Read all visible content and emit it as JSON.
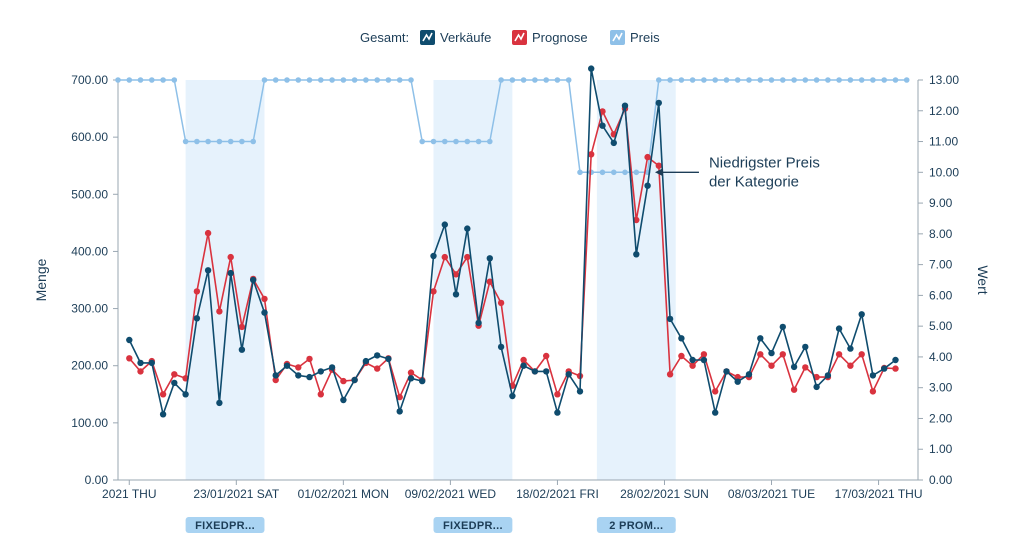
{
  "chart_data": {
    "type": "line",
    "legend": {
      "title": "Gesamt:",
      "items": [
        {
          "key": "sales",
          "label": "Verkäufe",
          "color": "#0f4c6e"
        },
        {
          "key": "forecast",
          "label": "Prognose",
          "color": "#d9333f"
        },
        {
          "key": "price",
          "label": "Preis",
          "color": "#8ec0e8"
        }
      ]
    },
    "ylabel_left": "Menge",
    "ylabel_right": "Wert",
    "ylim_left": [
      0,
      700
    ],
    "ylim_right": [
      0,
      13
    ],
    "yticks_left": [
      "0.00",
      "100.00",
      "200.00",
      "300.00",
      "400.00",
      "500.00",
      "600.00",
      "700.00"
    ],
    "yticks_right": [
      "0.00",
      "1.00",
      "2.00",
      "3.00",
      "4.00",
      "5.00",
      "6.00",
      "7.00",
      "8.00",
      "9.00",
      "10.00",
      "11.00",
      "12.00",
      "13.00"
    ],
    "x_range": [
      0,
      71
    ],
    "xticks": [
      {
        "label": "2021 THU",
        "x": 1
      },
      {
        "label": "23/01/2021 SAT",
        "x": 10.5
      },
      {
        "label": "01/02/2021 MON",
        "x": 20
      },
      {
        "label": "09/02/2021 WED",
        "x": 29.5
      },
      {
        "label": "18/02/2021 FRI",
        "x": 39
      },
      {
        "label": "28/02/2021 SUN",
        "x": 48.5
      },
      {
        "label": "08/03/2021 TUE",
        "x": 58
      },
      {
        "label": "17/03/2021 THU",
        "x": 67.5
      }
    ],
    "highlight_bands": [
      {
        "start": 6,
        "end": 13,
        "label": "FIXEDPR..."
      },
      {
        "start": 28,
        "end": 35,
        "label": "FIXEDPR..."
      },
      {
        "start": 42.5,
        "end": 49.5,
        "label": "2 PROM..."
      }
    ],
    "series": [
      {
        "name": "Verkäufe",
        "axis": "left",
        "values": [
          245,
          205,
          205,
          115,
          170,
          150,
          283,
          367,
          135,
          362,
          228,
          350,
          293,
          183,
          200,
          183,
          180,
          190,
          197,
          140,
          175,
          208,
          218,
          212,
          120,
          178,
          173,
          392,
          447,
          325,
          440,
          275,
          388,
          233,
          147,
          200,
          190,
          190,
          118,
          185,
          155,
          720,
          620,
          590,
          655,
          395,
          515,
          660,
          282,
          248,
          210,
          210,
          118,
          190,
          172,
          185,
          248,
          222,
          268,
          198,
          233,
          163,
          183,
          265,
          230,
          290,
          183,
          195,
          210
        ]
      },
      {
        "name": "Prognose",
        "axis": "left",
        "values": [
          213,
          190,
          208,
          150,
          185,
          178,
          330,
          432,
          295,
          390,
          268,
          352,
          317,
          175,
          203,
          197,
          212,
          150,
          193,
          173,
          175,
          205,
          195,
          213,
          145,
          188,
          175,
          330,
          390,
          360,
          390,
          270,
          347,
          310,
          165,
          210,
          190,
          217,
          150,
          190,
          182,
          570,
          645,
          605,
          650,
          455,
          565,
          550,
          185,
          217,
          200,
          220,
          155,
          190,
          180,
          180,
          220,
          200,
          220,
          158,
          197,
          180,
          180,
          220,
          200,
          220,
          155,
          196,
          195
        ]
      },
      {
        "name": "Preis",
        "axis": "right",
        "values": [
          13,
          13,
          13,
          13,
          13,
          13,
          11,
          11,
          11,
          11,
          11,
          11,
          11,
          13,
          13,
          13,
          13,
          13,
          13,
          13,
          13,
          13,
          13,
          13,
          13,
          13,
          13,
          11,
          11,
          11,
          11,
          11,
          11,
          11,
          13,
          13,
          13,
          13,
          13,
          13,
          13,
          10,
          10,
          10,
          10,
          10,
          10,
          10,
          13,
          13,
          13,
          13,
          13,
          13,
          13,
          13,
          13,
          13,
          13,
          13,
          13,
          13,
          13,
          13,
          13,
          13,
          13,
          13,
          13,
          13,
          13
        ],
        "start_x": 0
      }
    ],
    "annotation": {
      "line1": "Niedrigster Preis",
      "line2": "der Kategorie",
      "target_x": 47.3,
      "target_y": 10
    }
  }
}
